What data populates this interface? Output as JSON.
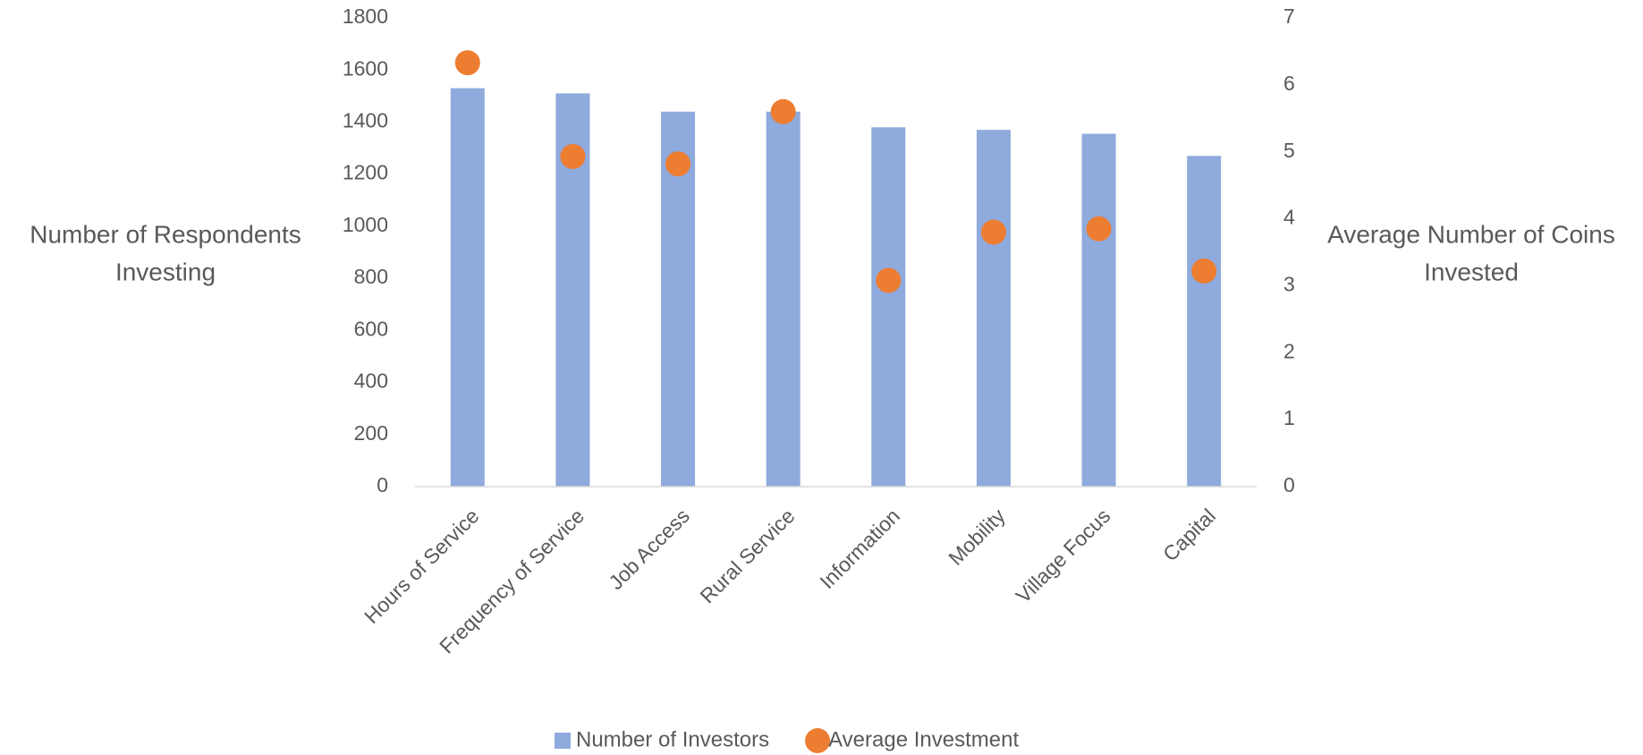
{
  "chart_data": {
    "type": "bar",
    "categories": [
      "Hours of Service",
      "Frequency of Service",
      "Job Access",
      "Rural Service",
      "Information",
      "Mobility",
      "Village Focus",
      "Capital"
    ],
    "series": [
      {
        "name": "Number of Investors",
        "color": "#8faadc",
        "type": "bar",
        "values": [
          1530,
          1510,
          1440,
          1440,
          1380,
          1370,
          1355,
          1270
        ]
      },
      {
        "name": "Average Investment",
        "color": "#ed7d31",
        "type": "scatter",
        "axis": "y2",
        "values": [
          6.33,
          4.93,
          4.82,
          5.6,
          3.08,
          3.8,
          3.85,
          3.22
        ]
      }
    ],
    "y_label": [
      "Number of Respondents",
      "Investing"
    ],
    "y2_label": [
      "Average Number of Coins",
      "Invested"
    ],
    "ylim": [
      0,
      1800
    ],
    "yticks": [
      0,
      200,
      400,
      600,
      800,
      1000,
      1200,
      1400,
      1600,
      1800
    ],
    "y2lim": [
      0,
      7
    ],
    "y2ticks": [
      0,
      1,
      2,
      3,
      4,
      5,
      6,
      7
    ],
    "grid": false,
    "legend": "bottom"
  }
}
